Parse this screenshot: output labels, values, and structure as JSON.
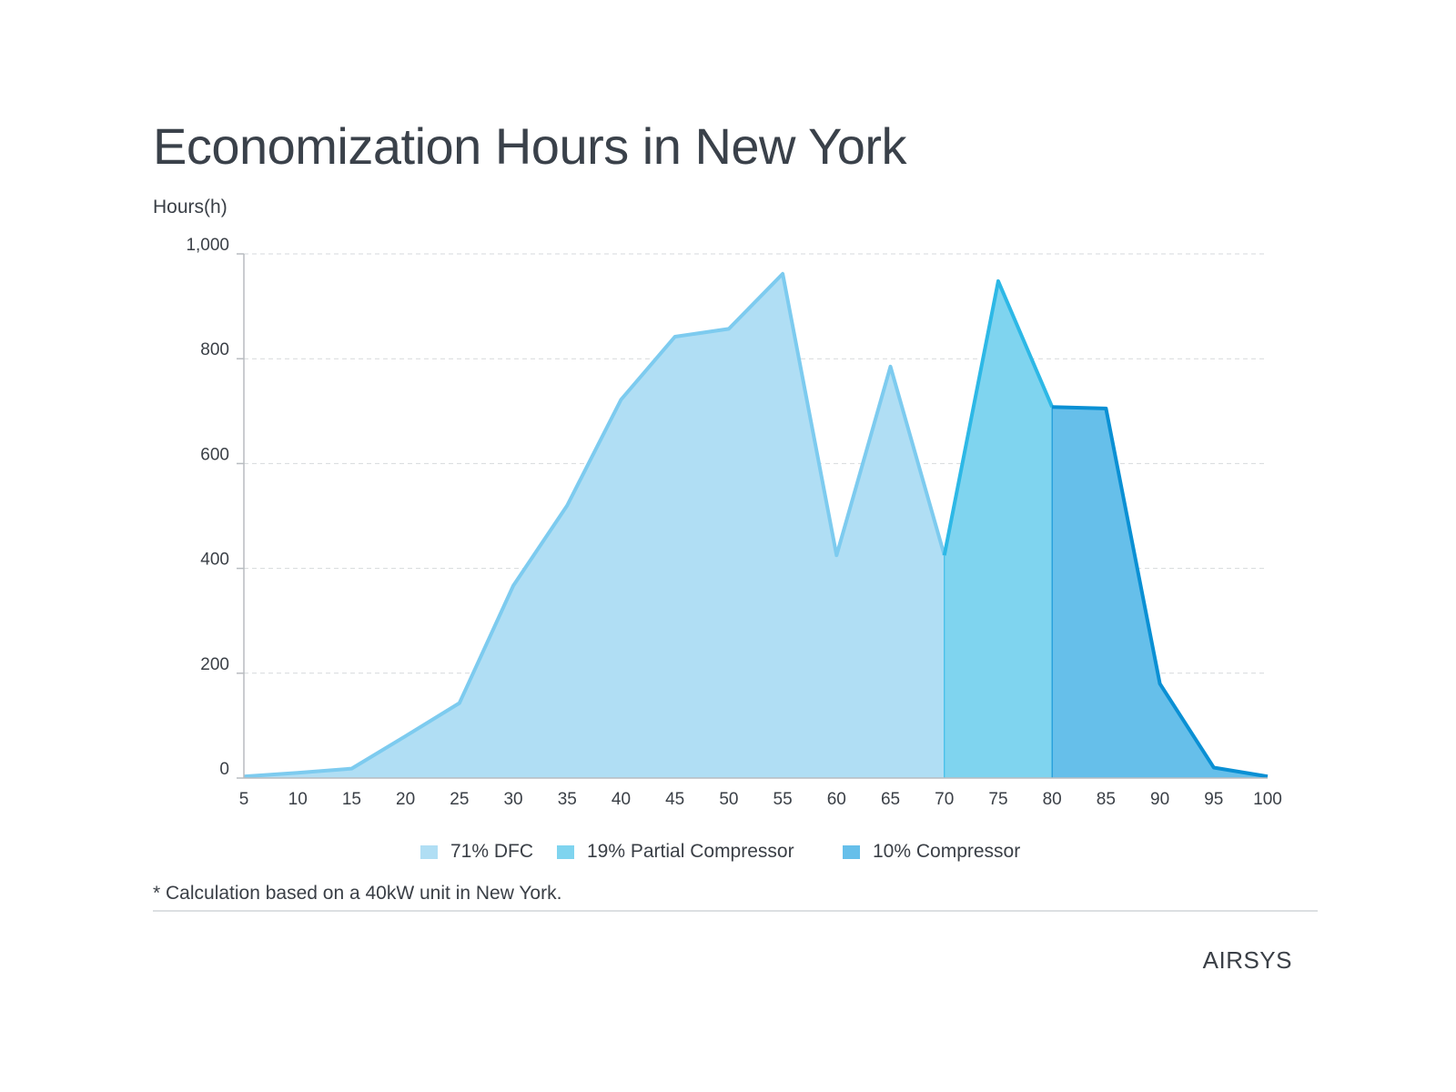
{
  "chart_data": {
    "type": "area",
    "title": "Economization Hours in New York",
    "ylabel": "Hours(h)",
    "xlabel": "",
    "x": [
      5,
      10,
      15,
      20,
      25,
      30,
      35,
      40,
      45,
      50,
      55,
      60,
      65,
      70,
      75,
      80,
      85,
      90,
      95,
      100
    ],
    "y": [
      3,
      10,
      18,
      80,
      143,
      367,
      520,
      722,
      842,
      857,
      962,
      425,
      785,
      425,
      948,
      708,
      705,
      180,
      20,
      3
    ],
    "xlim": [
      5,
      100
    ],
    "ylim": [
      0,
      1000
    ],
    "yticks": [
      0,
      200,
      400,
      600,
      800,
      1000
    ],
    "ytick_labels": [
      "0",
      "200",
      "400",
      "600",
      "800",
      "1,000"
    ],
    "xticks": [
      "5",
      "10",
      "15",
      "20",
      "25",
      "30",
      "35",
      "40",
      "45",
      "50",
      "55",
      "60",
      "65",
      "70",
      "75",
      "80",
      "85",
      "90",
      "95",
      "100"
    ],
    "grid": true,
    "regions": [
      {
        "name": "71% DFC",
        "x_range": [
          5,
          70
        ],
        "fill": "#b0def4",
        "stroke": "#7dcbef"
      },
      {
        "name": "19% Partial Compressor",
        "x_range": [
          70,
          80
        ],
        "fill": "#7fd4ef",
        "stroke": "#2db8e6"
      },
      {
        "name": "10% Compressor",
        "x_range": [
          80,
          100
        ],
        "fill": "#66bfea",
        "stroke": "#0a90d4"
      }
    ],
    "legend_position": "bottom"
  },
  "footnote": "* Calculation based on a 40kW unit in New York.",
  "brand": "AIRSYS"
}
